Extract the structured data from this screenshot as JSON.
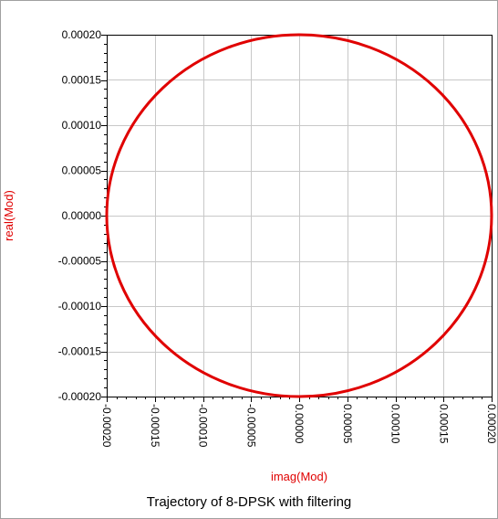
{
  "chart_data": {
    "type": "scatter",
    "title": "Trajectory of 8-DPSK with filtering",
    "xlabel": "imag(Mod)",
    "ylabel": "real(Mod)",
    "xlim": [
      -0.0002,
      0.0002
    ],
    "ylim": [
      -0.0002,
      0.0002
    ],
    "x_ticks": [
      "-0.00020",
      "-0.00015",
      "-0.00010",
      "-0.00005",
      "0.00000",
      "0.00005",
      "0.00010",
      "0.00015",
      "0.00020"
    ],
    "y_ticks": [
      "0.00020",
      "0.00015",
      "0.00010",
      "0.00005",
      "0.00000",
      "-0.00005",
      "-0.00010",
      "-0.00015",
      "-0.00020"
    ],
    "grid": true,
    "series": [
      {
        "shape": "circle",
        "center": [
          0,
          0
        ],
        "radius": 0.0002,
        "color": "#e00000"
      }
    ],
    "colors": {
      "trace": "#e00000",
      "axis_label": "#e00000",
      "grid": "#c8c8c8"
    }
  }
}
